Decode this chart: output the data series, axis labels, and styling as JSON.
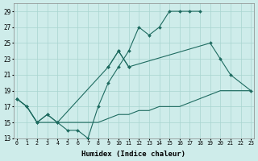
{
  "xlabel": "Humidex (Indice chaleur)",
  "bg_color": "#ceecea",
  "grid_color": "#a8d5d0",
  "line_color": "#1e6b60",
  "line1": {
    "x": [
      0,
      1,
      2,
      3,
      4,
      5,
      6,
      7,
      8,
      9,
      10,
      11,
      12,
      13,
      14,
      15,
      16,
      17,
      18
    ],
    "y": [
      18,
      17,
      15,
      16,
      15,
      14,
      14,
      13,
      17,
      20,
      22,
      24,
      27,
      26,
      27,
      29,
      29,
      29,
      29
    ]
  },
  "line2": {
    "x": [
      0,
      1,
      2,
      3,
      4,
      9,
      10,
      11,
      19,
      20,
      21,
      23
    ],
    "y": [
      18,
      17,
      15,
      16,
      15,
      22,
      24,
      22,
      25,
      23,
      21,
      19
    ]
  },
  "line3": {
    "x": [
      0,
      1,
      2,
      3,
      4,
      5,
      6,
      7,
      8,
      9,
      10,
      11,
      12,
      13,
      14,
      15,
      16,
      17,
      18,
      19,
      20,
      21,
      22,
      23
    ],
    "y": [
      18,
      17,
      15,
      15,
      15,
      15,
      15,
      15,
      15,
      15.5,
      16,
      16,
      16.5,
      16.5,
      17,
      17,
      17,
      17.5,
      18,
      18.5,
      19,
      19,
      19,
      19
    ]
  },
  "xlim": [
    0,
    23
  ],
  "ylim": [
    13,
    30
  ],
  "yticks": [
    13,
    15,
    17,
    19,
    21,
    23,
    25,
    27,
    29
  ],
  "xticks": [
    0,
    1,
    2,
    3,
    4,
    5,
    6,
    7,
    8,
    9,
    10,
    11,
    12,
    13,
    14,
    15,
    16,
    17,
    18,
    19,
    20,
    21,
    22,
    23
  ]
}
